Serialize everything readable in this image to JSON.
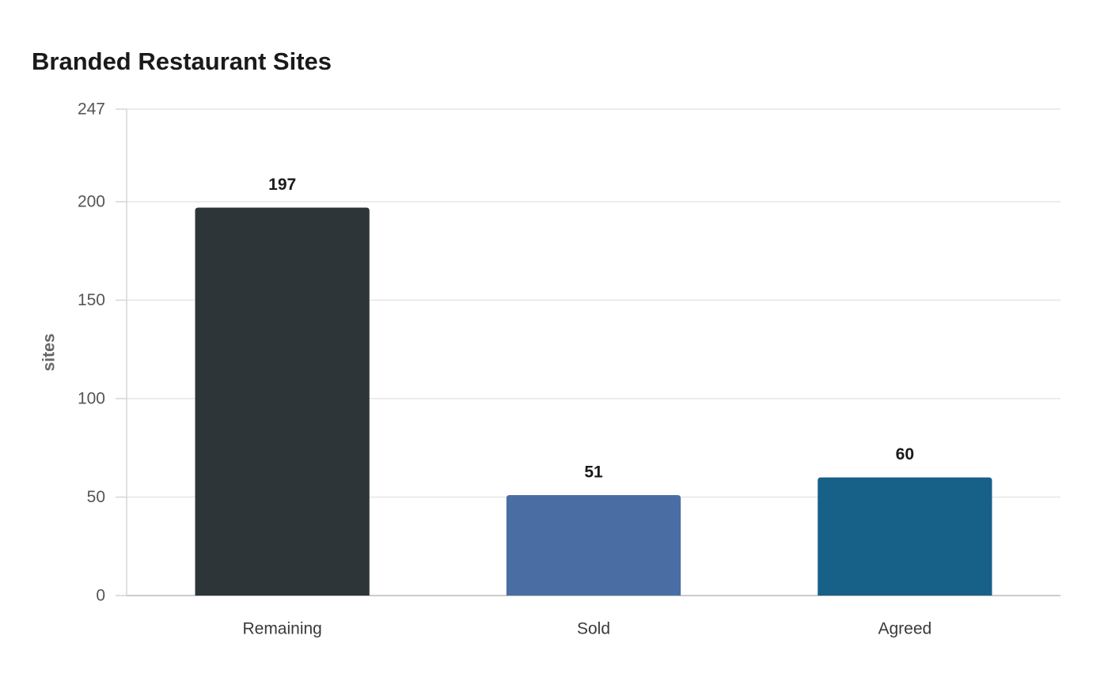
{
  "chart_data": {
    "type": "bar",
    "title": "Branded Restaurant Sites",
    "xlabel": "",
    "ylabel": "sites",
    "categories": [
      "Remaining",
      "Sold",
      "Agreed"
    ],
    "values": [
      197,
      51,
      60
    ],
    "colors": [
      "#2e3538",
      "#4a6ea3",
      "#176189"
    ],
    "ylim": [
      0,
      247
    ],
    "yticks": [
      0,
      50,
      100,
      150,
      200,
      247
    ],
    "grid": true,
    "legend": "none"
  }
}
